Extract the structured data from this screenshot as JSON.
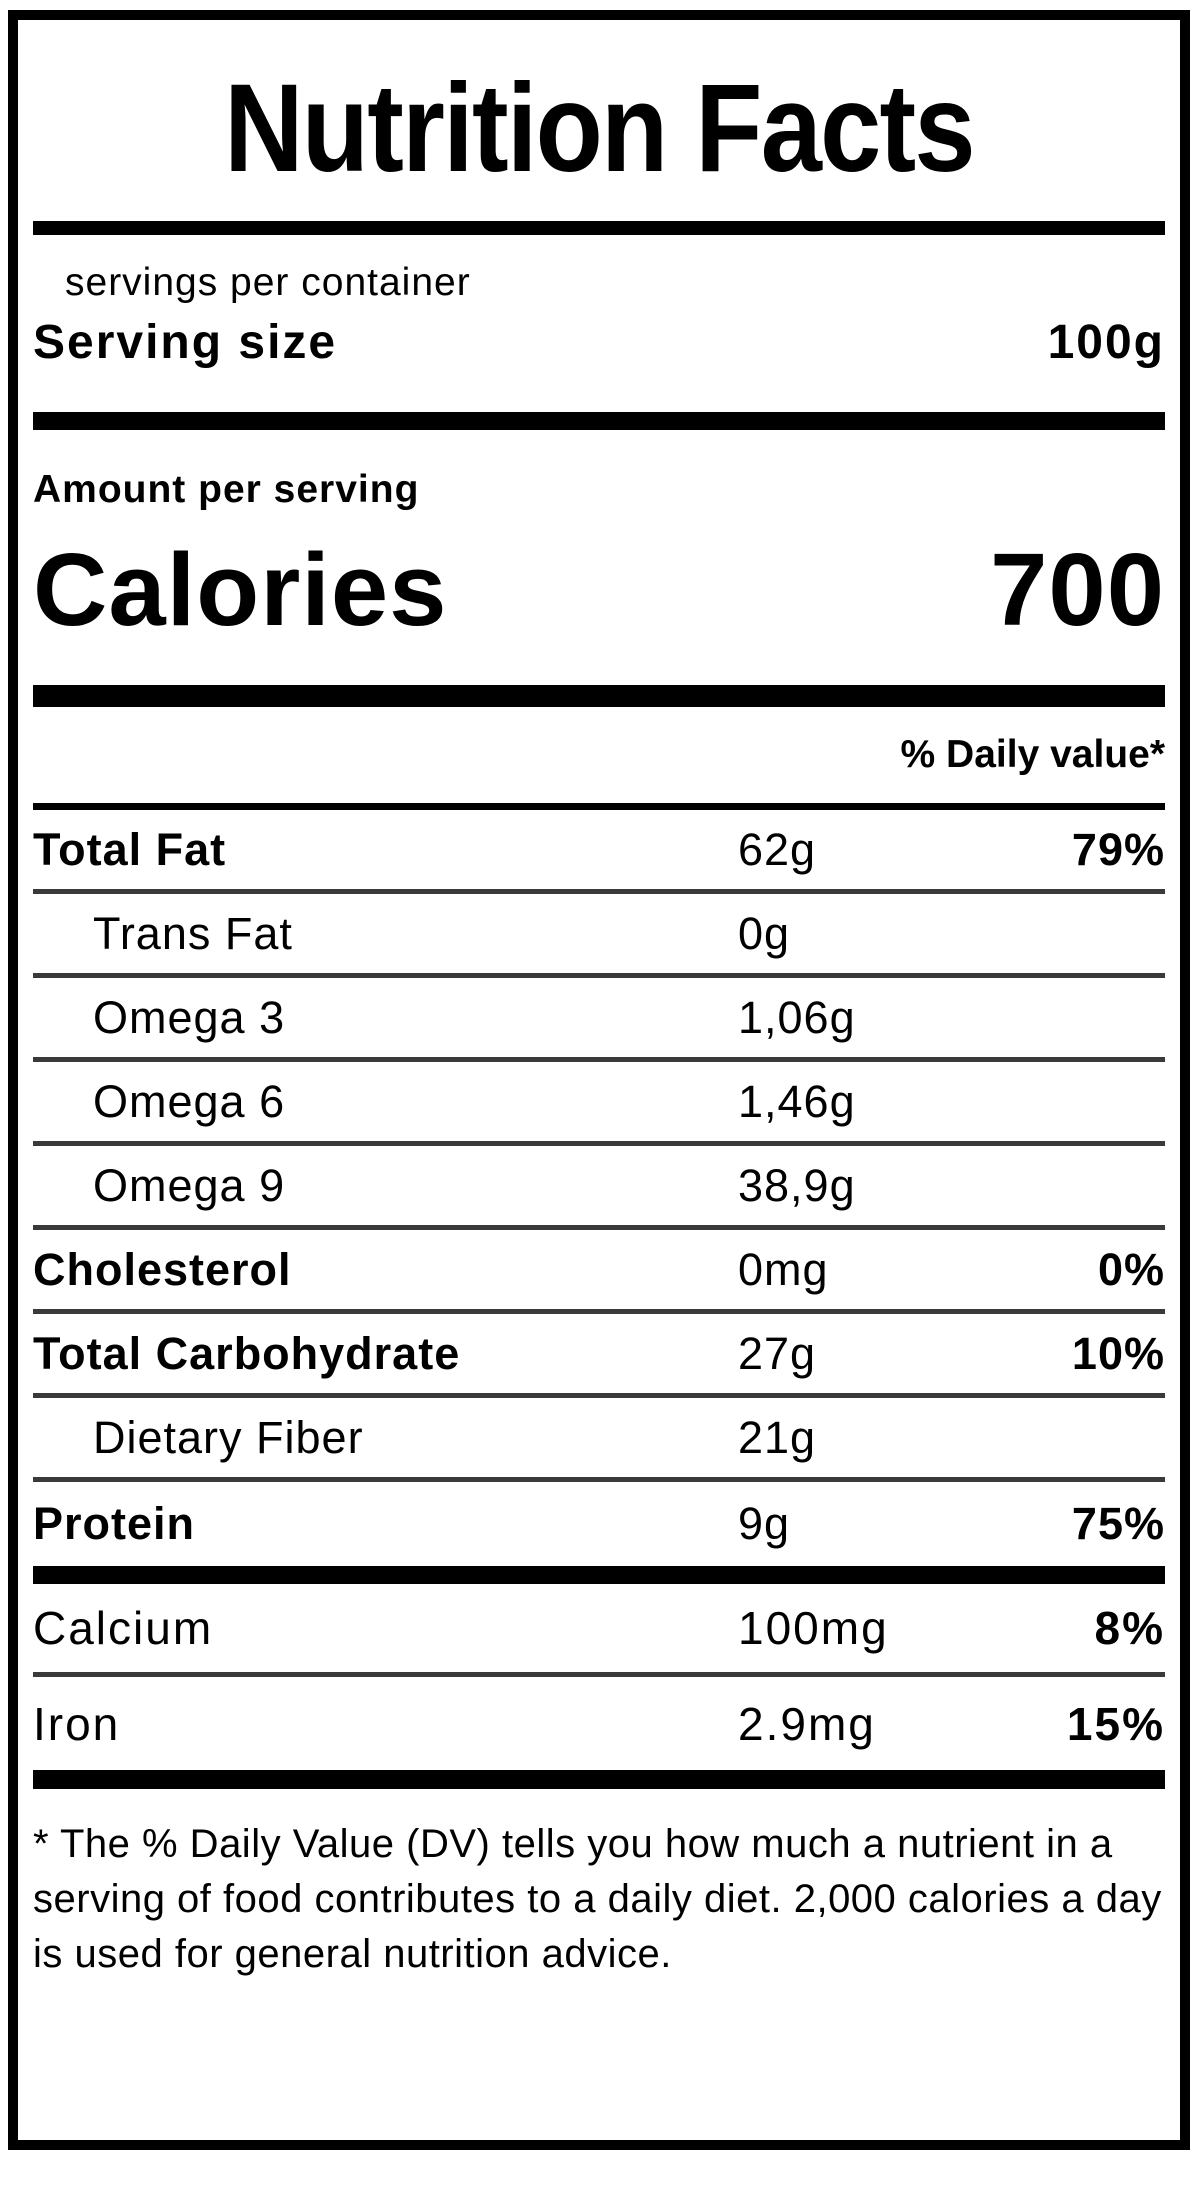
{
  "label": {
    "title": "Nutrition Facts",
    "servings_per_container": "servings per container",
    "serving_size_label": "Serving size",
    "serving_size_value": "100g",
    "amount_per_serving": "Amount per serving",
    "calories_label": "Calories",
    "calories_value": "700",
    "daily_value_header": "% Daily value*",
    "rows": [
      {
        "name": "Total Fat",
        "amount": "62g",
        "dv": "79%"
      },
      {
        "name": "Trans Fat",
        "amount": "0g",
        "dv": ""
      },
      {
        "name": "Omega 3",
        "amount": "1,06g",
        "dv": ""
      },
      {
        "name": "Omega 6",
        "amount": "1,46g",
        "dv": ""
      },
      {
        "name": "Omega 9",
        "amount": "38,9g",
        "dv": ""
      },
      {
        "name": "Cholesterol",
        "amount": "0mg",
        "dv": "0%"
      },
      {
        "name": "Total Carbohydrate",
        "amount": "27g",
        "dv": "10%"
      },
      {
        "name": "Dietary Fiber",
        "amount": "21g",
        "dv": ""
      },
      {
        "name": "Protein",
        "amount": "9g",
        "dv": "75%"
      }
    ],
    "minerals": [
      {
        "name": "Calcium",
        "amount": "100mg",
        "dv": "8%"
      },
      {
        "name": "Iron",
        "amount": "2.9mg",
        "dv": "15%"
      }
    ],
    "footnote": "* The % Daily Value (DV) tells you how much a nutrient in a serving of food contributes to a daily diet. 2,000 calories a day is used for general nutrition advice.",
    "colors": {
      "text": "#000000",
      "background": "#ffffff",
      "thick_rule": "#000000",
      "thin_rule": "#3a3a3a"
    }
  }
}
